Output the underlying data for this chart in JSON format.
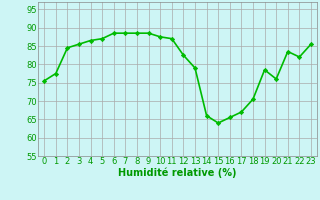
{
  "x": [
    0,
    1,
    2,
    3,
    4,
    5,
    6,
    7,
    8,
    9,
    10,
    11,
    12,
    13,
    14,
    15,
    16,
    17,
    18,
    19,
    20,
    21,
    22,
    23
  ],
  "y": [
    75.5,
    77.5,
    84.5,
    85.5,
    86.5,
    87,
    88.5,
    88.5,
    88.5,
    88.5,
    87.5,
    87,
    82.5,
    79,
    66,
    64,
    65.5,
    67,
    70.5,
    78.5,
    76,
    83.5,
    82,
    85.5
  ],
  "line_color": "#00bb00",
  "marker": "D",
  "marker_size": 2.2,
  "bg_color": "#cdf5f5",
  "grid_color": "#aaaaaa",
  "xlabel": "Humidité relative (%)",
  "xlabel_color": "#009900",
  "tick_color": "#009900",
  "ylim": [
    55,
    97
  ],
  "xlim": [
    -0.5,
    23.5
  ],
  "yticks": [
    55,
    60,
    65,
    70,
    75,
    80,
    85,
    90,
    95
  ],
  "xticks": [
    0,
    1,
    2,
    3,
    4,
    5,
    6,
    7,
    8,
    9,
    10,
    11,
    12,
    13,
    14,
    15,
    16,
    17,
    18,
    19,
    20,
    21,
    22,
    23
  ],
  "xlabel_fontsize": 7,
  "tick_fontsize": 6,
  "linewidth": 1.2
}
